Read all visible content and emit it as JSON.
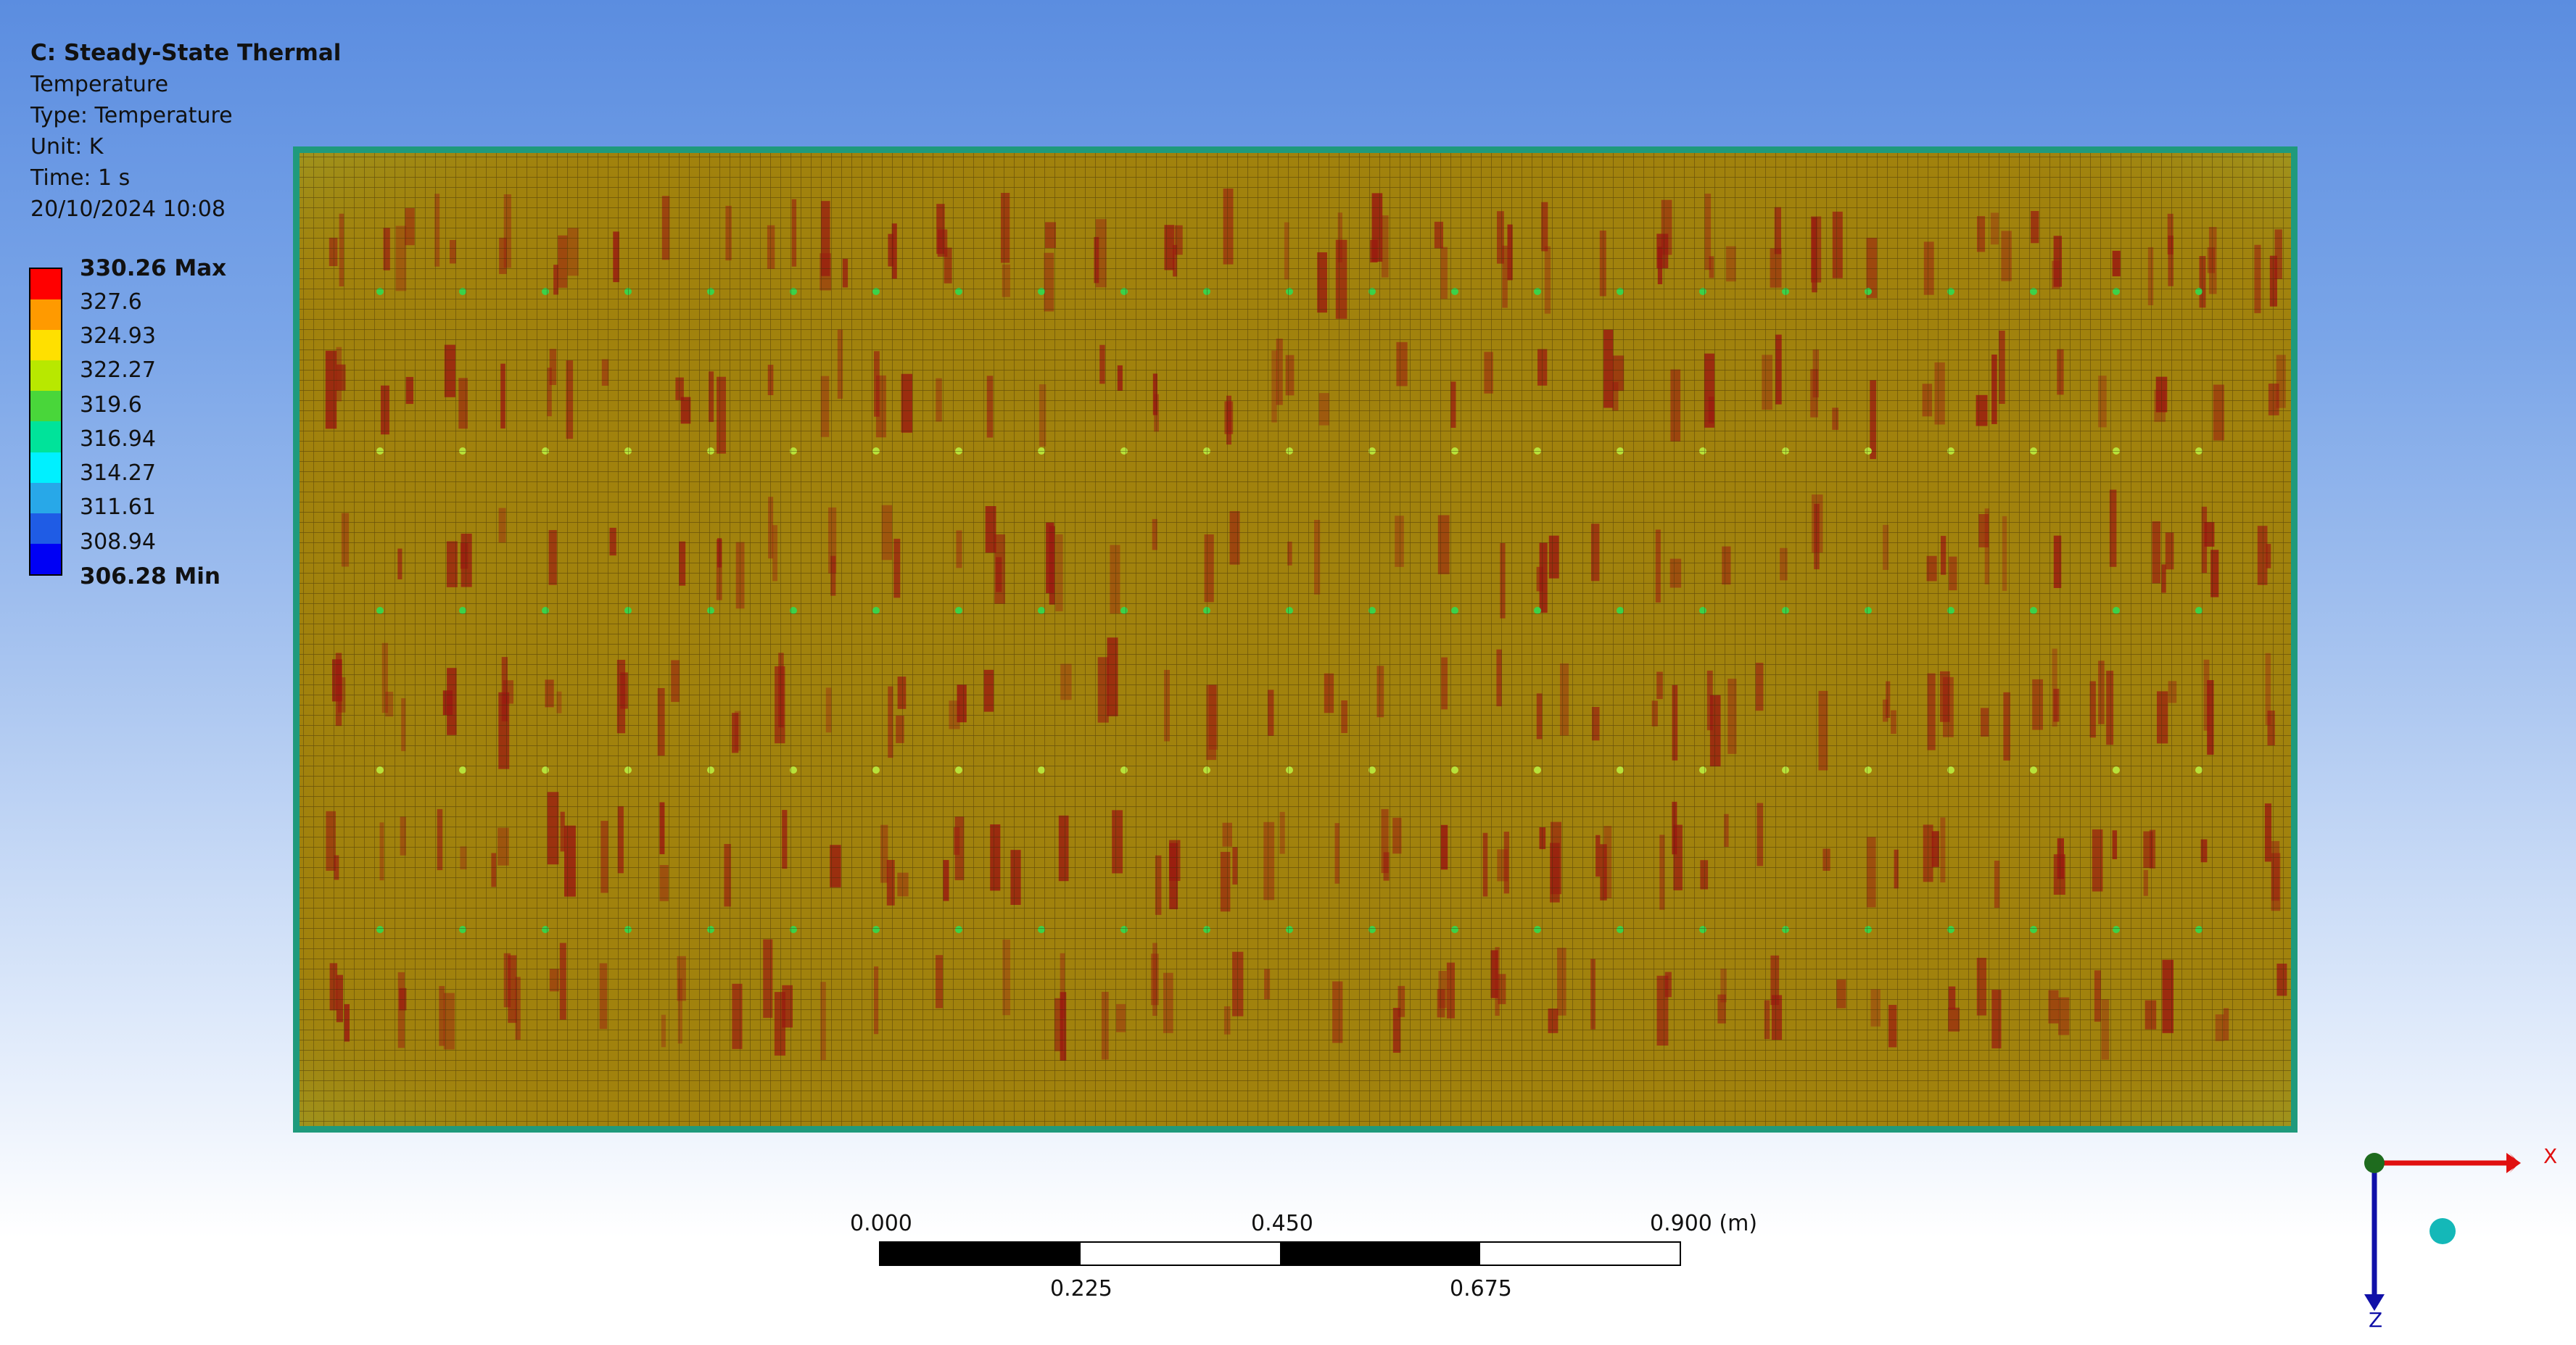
{
  "header": {
    "title": "C: Steady-State Thermal",
    "result": "Temperature",
    "type": "Type: Temperature",
    "unit": "Unit: K",
    "time": "Time: 1 s",
    "datetime": "20/10/2024 10:08"
  },
  "legend": {
    "labels": [
      "330.26 Max",
      "327.6",
      "324.93",
      "322.27",
      "319.6",
      "316.94",
      "314.27",
      "311.61",
      "308.94",
      "306.28 Min"
    ],
    "colors": [
      "#ff0000",
      "#ff9a00",
      "#ffe000",
      "#b8e800",
      "#49d63a",
      "#00e39a",
      "#00f0ff",
      "#28a8e8",
      "#1f5ce5",
      "#0000f5"
    ]
  },
  "scale_bar": {
    "top_labels": [
      "0.000",
      "0.450",
      "0.900 (m)"
    ],
    "bottom_labels": [
      "0.225",
      "0.675"
    ]
  },
  "triad": {
    "x_label": "X",
    "z_label": "Z"
  },
  "colors": {
    "model_fill": "#a1820d",
    "model_edge": "#1f9a7c",
    "hot_spot": "#9a1a10",
    "mesh_line": "#3a2a08"
  }
}
